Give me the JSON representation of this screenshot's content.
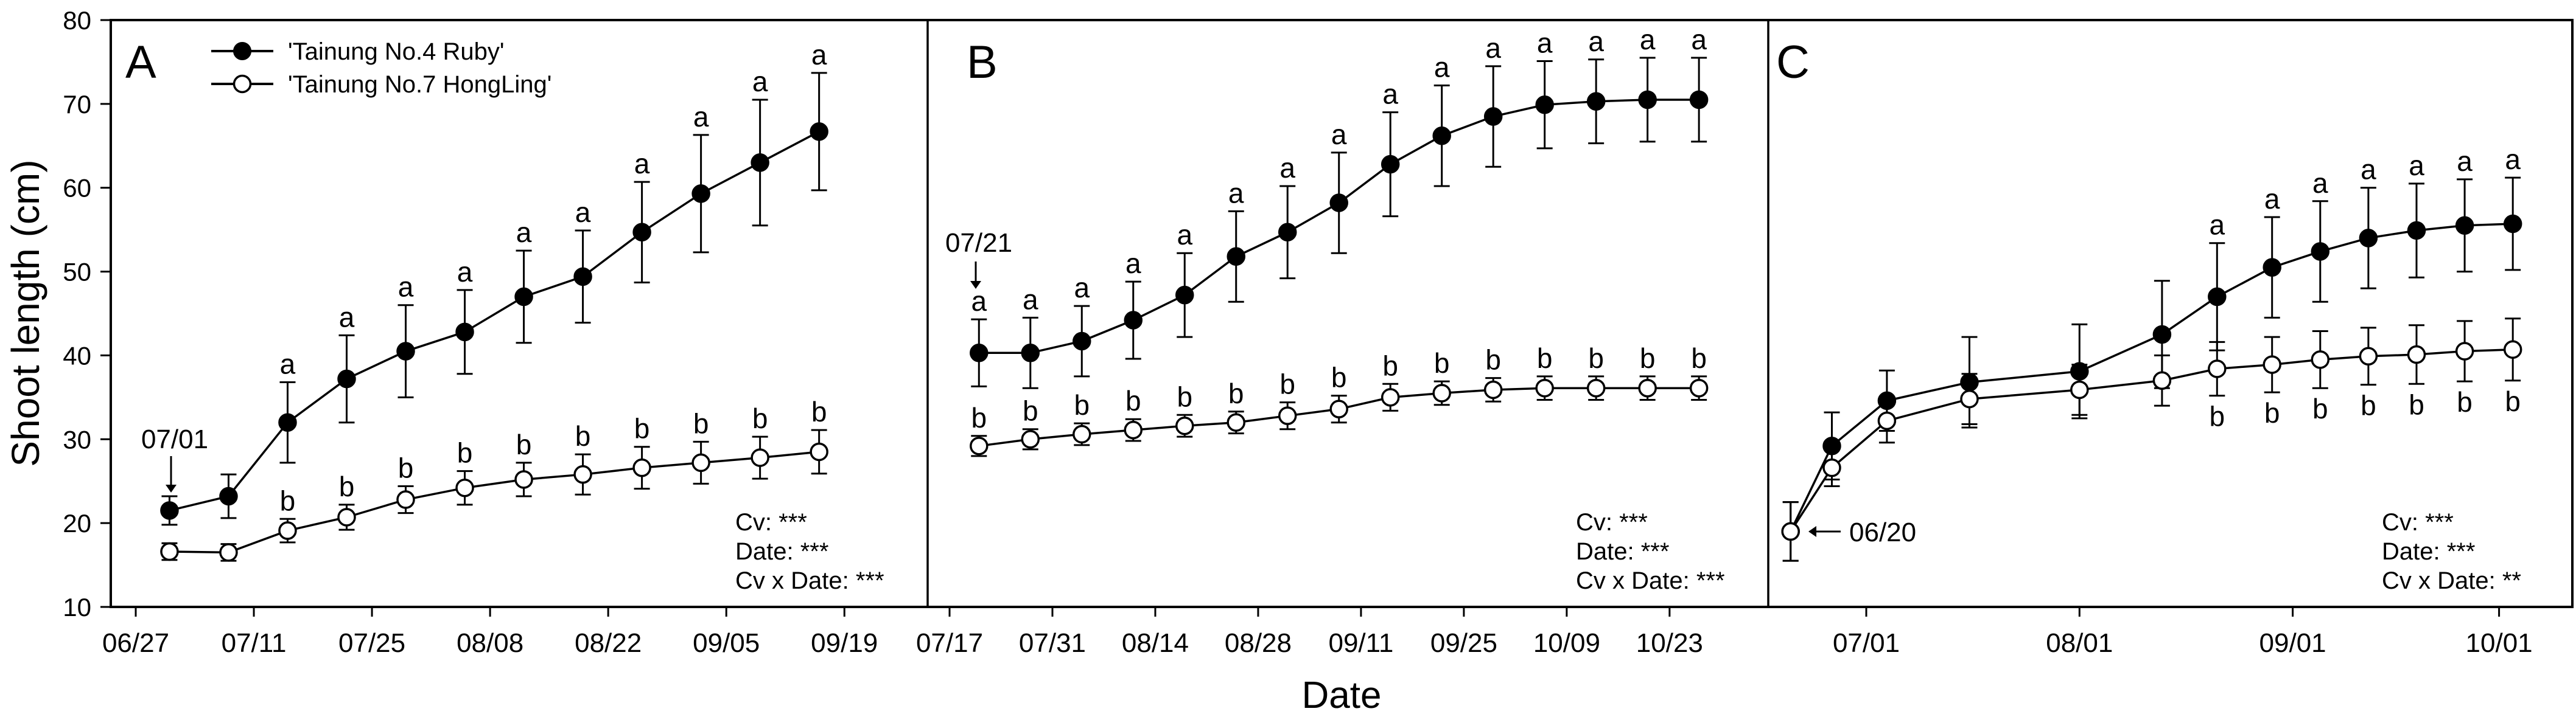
{
  "figure": {
    "background": "#ffffff",
    "foreground": "#000000",
    "y_axis": {
      "title": "Shoot length (cm)",
      "range": [
        10,
        80
      ],
      "tick_step": 10,
      "tick_labels": [
        "10",
        "20",
        "30",
        "40",
        "50",
        "60",
        "70",
        "80"
      ]
    },
    "x_axis": {
      "title": "Date"
    },
    "legend": {
      "items": [
        {
          "label": "'Tainung No.4 Ruby'",
          "marker": "filled-circle"
        },
        {
          "label": "'Tainung No.7 HongLing'",
          "marker": "open-circle"
        }
      ]
    }
  },
  "chart_data": [
    {
      "type": "line",
      "panel_label": "A",
      "annotation": {
        "text": "07/01",
        "arrow": "down"
      },
      "x_ticks": [
        "06/27",
        "07/11",
        "07/25",
        "08/08",
        "08/22",
        "09/05",
        "09/19"
      ],
      "stats": [
        "Cv: ***",
        "Date: ***",
        "Cv x Date: ***"
      ],
      "x": [
        "07/01",
        "07/08",
        "07/15",
        "07/22",
        "07/29",
        "08/05",
        "08/12",
        "08/19",
        "08/26",
        "09/02",
        "09/09",
        "09/16"
      ],
      "ylim": [
        10,
        80
      ],
      "series": [
        {
          "name": "'Tainung No.4 Ruby'",
          "marker": "filled-circle",
          "values": [
            21.5,
            23.2,
            32.0,
            37.2,
            40.5,
            42.8,
            47.0,
            49.4,
            54.7,
            59.3,
            63.0,
            66.7
          ],
          "errors": [
            1.7,
            2.6,
            4.8,
            5.2,
            5.5,
            5.0,
            5.5,
            5.5,
            6.0,
            7.0,
            7.5,
            7.0
          ],
          "letters": [
            "",
            "",
            "a",
            "a",
            "a",
            "a",
            "a",
            "a",
            "a",
            "a",
            "a",
            "a"
          ],
          "letters_position": "above"
        },
        {
          "name": "'Tainung No.7 HongLing'",
          "marker": "open-circle",
          "values": [
            16.6,
            16.5,
            19.1,
            20.7,
            22.8,
            24.2,
            25.2,
            25.8,
            26.6,
            27.2,
            27.8,
            28.5
          ],
          "errors": [
            1.0,
            1.0,
            1.4,
            1.5,
            1.6,
            2.0,
            2.0,
            2.4,
            2.5,
            2.5,
            2.5,
            2.6
          ],
          "letters": [
            "",
            "",
            "b",
            "b",
            "b",
            "b",
            "b",
            "b",
            "b",
            "b",
            "b",
            "b"
          ],
          "letters_position": "above"
        }
      ]
    },
    {
      "type": "line",
      "panel_label": "B",
      "annotation": {
        "text": "07/21",
        "arrow": "down"
      },
      "x_ticks": [
        "07/17",
        "07/31",
        "08/14",
        "08/28",
        "09/11",
        "09/25",
        "10/09",
        "10/23"
      ],
      "stats": [
        "Cv: ***",
        "Date: ***",
        "Cv x Date: ***"
      ],
      "x": [
        "07/21",
        "07/28",
        "08/04",
        "08/11",
        "08/18",
        "08/25",
        "09/01",
        "09/08",
        "09/15",
        "09/22",
        "09/29",
        "10/06",
        "10/13",
        "10/20",
        "10/27"
      ],
      "ylim": [
        10,
        80
      ],
      "series": [
        {
          "name": "'Tainung No.4 Ruby'",
          "marker": "filled-circle",
          "values": [
            40.3,
            40.3,
            41.7,
            44.2,
            47.2,
            51.8,
            54.7,
            58.2,
            62.8,
            66.2,
            68.5,
            69.9,
            70.3,
            70.5,
            70.5
          ],
          "errors": [
            4.0,
            4.2,
            4.2,
            4.6,
            5.0,
            5.4,
            5.5,
            6.0,
            6.2,
            6.0,
            6.0,
            5.2,
            5.0,
            5.0,
            5.0
          ],
          "letters": [
            "a",
            "a",
            "a",
            "a",
            "a",
            "a",
            "a",
            "a",
            "a",
            "a",
            "a",
            "a",
            "a",
            "a",
            "a"
          ],
          "letters_position": "above"
        },
        {
          "name": "'Tainung No.7 HongLing'",
          "marker": "open-circle",
          "values": [
            29.2,
            30.0,
            30.6,
            31.1,
            31.6,
            32.0,
            32.8,
            33.6,
            35.0,
            35.5,
            35.9,
            36.1,
            36.1,
            36.1,
            36.1
          ],
          "errors": [
            1.2,
            1.2,
            1.3,
            1.3,
            1.3,
            1.3,
            1.6,
            1.6,
            1.6,
            1.4,
            1.4,
            1.4,
            1.4,
            1.4,
            1.4
          ],
          "letters": [
            "b",
            "b",
            "b",
            "b",
            "b",
            "b",
            "b",
            "b",
            "b",
            "b",
            "b",
            "b",
            "b",
            "b",
            "b"
          ],
          "letters_position": "above"
        }
      ]
    },
    {
      "type": "line",
      "panel_label": "C",
      "annotation": {
        "text": "06/20",
        "arrow": "left"
      },
      "x_ticks": [
        "07/01",
        "08/01",
        "09/01",
        "10/01"
      ],
      "stats": [
        "Cv: ***",
        "Date: ***",
        "Cv x Date: **"
      ],
      "x": [
        "06/20",
        "06/26",
        "07/04",
        "07/16",
        "08/01",
        "08/13",
        "08/21",
        "08/29",
        "09/05",
        "09/12",
        "09/19",
        "09/26",
        "10/03"
      ],
      "ylim": [
        10,
        80
      ],
      "series": [
        {
          "name": "'Tainung No.4 Ruby'",
          "marker": "filled-circle",
          "values": [
            19.0,
            29.2,
            34.6,
            36.8,
            38.1,
            42.5,
            47.0,
            50.5,
            52.4,
            54.0,
            54.9,
            55.5,
            55.7
          ],
          "errors": [
            3.5,
            4.0,
            3.6,
            5.4,
            5.6,
            6.4,
            6.4,
            6.0,
            6.0,
            6.0,
            5.6,
            5.5,
            5.5
          ],
          "letters": [
            "",
            "",
            "",
            "",
            "",
            "",
            "a",
            "a",
            "a",
            "a",
            "a",
            "a",
            "a"
          ],
          "letters_position": "above"
        },
        {
          "name": "'Tainung No.7 HongLing'",
          "marker": "open-circle",
          "values": [
            19.0,
            26.6,
            32.2,
            34.8,
            35.9,
            37.0,
            38.4,
            38.9,
            39.5,
            39.9,
            40.1,
            40.5,
            40.7
          ],
          "errors": [
            3.5,
            2.2,
            2.6,
            3.0,
            3.0,
            3.0,
            3.2,
            3.3,
            3.4,
            3.4,
            3.5,
            3.6,
            3.7
          ],
          "letters": [
            "",
            "",
            "",
            "",
            "",
            "",
            "b",
            "b",
            "b",
            "b",
            "b",
            "b",
            "b"
          ],
          "letters_position": "below"
        }
      ]
    }
  ]
}
